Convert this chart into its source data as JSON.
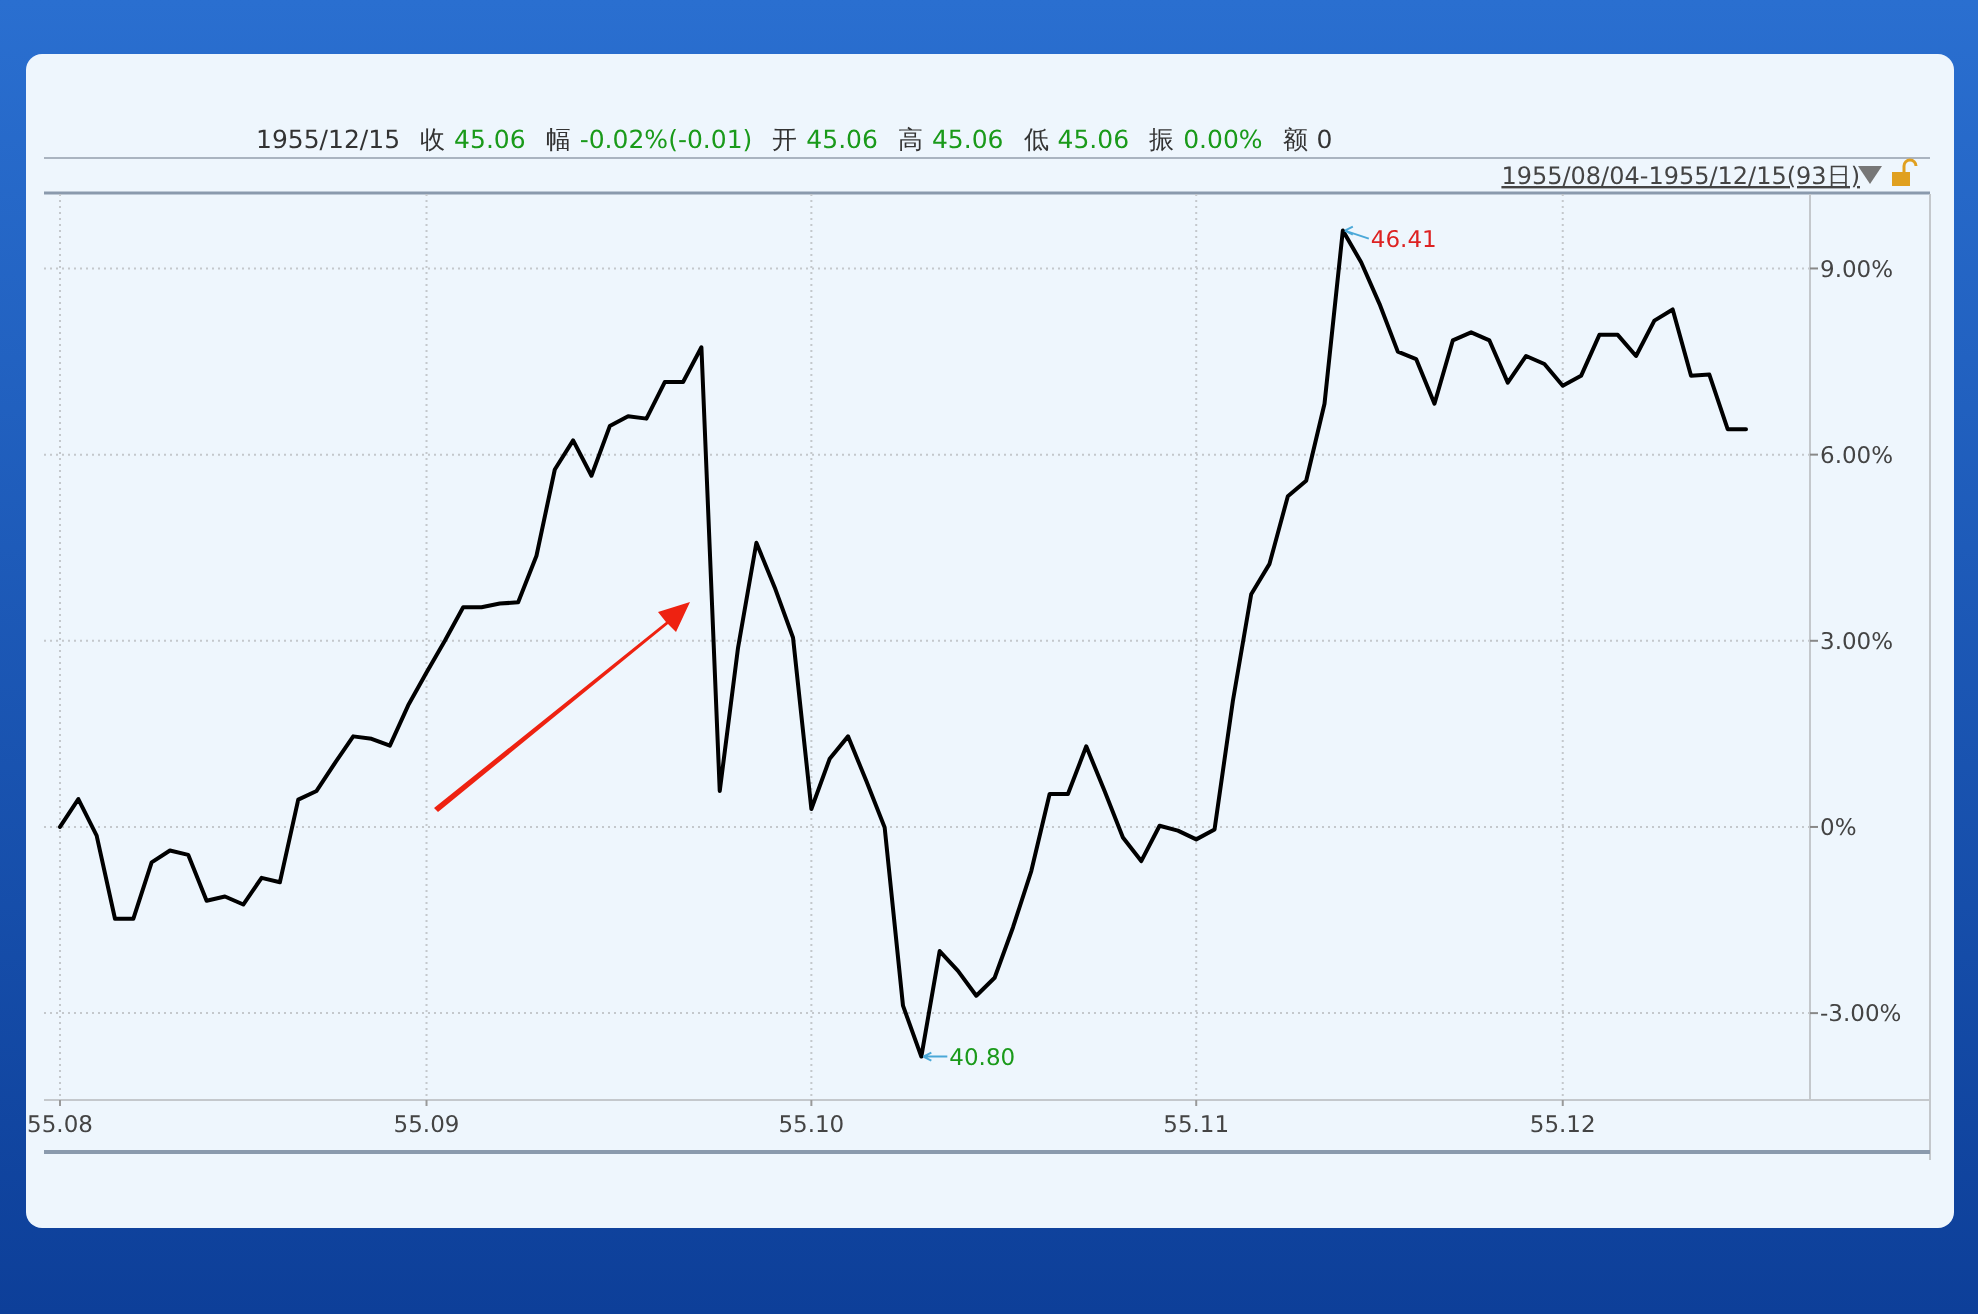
{
  "chart_data": {
    "type": "line",
    "title": "1955/12/15 收 45.06 幅 -0.02%(-0.01) 开 45.06 高 45.06 低 45.06 振 0.00% 额 0",
    "subtitle": "1955/08/04-1955/12/15(93日)",
    "annotations": [
      "46.41",
      "40.80"
    ],
    "categories": [
      "55.08",
      null,
      null,
      null,
      null,
      null,
      null,
      null,
      null,
      null,
      null,
      null,
      null,
      null,
      null,
      null,
      null,
      null,
      null,
      null,
      "55.09",
      null,
      null,
      null,
      null,
      null,
      null,
      null,
      null,
      null,
      null,
      null,
      null,
      null,
      null,
      null,
      null,
      null,
      null,
      null,
      null,
      "55.10",
      null,
      null,
      null,
      null,
      null,
      null,
      null,
      null,
      null,
      null,
      null,
      null,
      null,
      null,
      null,
      null,
      null,
      null,
      null,
      null,
      "55.11",
      null,
      null,
      null,
      null,
      null,
      null,
      null,
      null,
      null,
      null,
      null,
      null,
      null,
      null,
      null,
      null,
      null,
      null,
      null,
      "55.12",
      null,
      null,
      null,
      null,
      null,
      null,
      null,
      null,
      null,
      null
    ],
    "series": [
      {
        "color": "#000000",
        "values": [
          0.0,
          0.45,
          -0.14,
          -1.48,
          -1.48,
          -0.57,
          -0.38,
          -0.45,
          -1.19,
          -1.12,
          -1.25,
          -0.82,
          -0.89,
          0.44,
          0.58,
          1.03,
          1.46,
          1.42,
          1.31,
          1.96,
          2.49,
          3.0,
          3.54,
          3.54,
          3.6,
          3.62,
          4.37,
          5.76,
          6.23,
          5.66,
          6.46,
          6.62,
          6.58,
          7.17,
          7.17,
          7.73,
          0.58,
          2.89,
          4.58,
          3.86,
          3.05,
          0.29,
          1.1,
          1.46,
          0.74,
          -0.01,
          -2.88,
          -3.7,
          -2.0,
          -2.32,
          -2.72,
          -2.43,
          -1.62,
          -0.71,
          0.53,
          0.53,
          1.3,
          0.58,
          -0.17,
          -0.55,
          0.02,
          -0.06,
          -0.2,
          -0.04,
          2.03,
          3.75,
          4.24,
          5.33,
          5.58,
          6.82,
          9.61,
          9.1,
          8.43,
          7.66,
          7.54,
          6.82,
          7.84,
          7.97,
          7.84,
          7.16,
          7.59,
          7.46,
          7.11,
          7.27,
          7.93,
          7.93,
          7.59,
          8.16,
          8.34,
          7.27,
          7.29,
          6.41,
          6.41
        ]
      }
    ],
    "ylim": [
      -4.4,
      10.2
    ],
    "yticks": [
      {
        "value": -3,
        "label": "-3.00%"
      },
      {
        "value": 0,
        "label": "0%"
      },
      {
        "value": 3,
        "label": "3.00%"
      },
      {
        "value": 6,
        "label": "6.00%"
      },
      {
        "value": 9,
        "label": "9.00%"
      }
    ],
    "grid": true,
    "line_style": "solid",
    "marker": "none"
  }
}
